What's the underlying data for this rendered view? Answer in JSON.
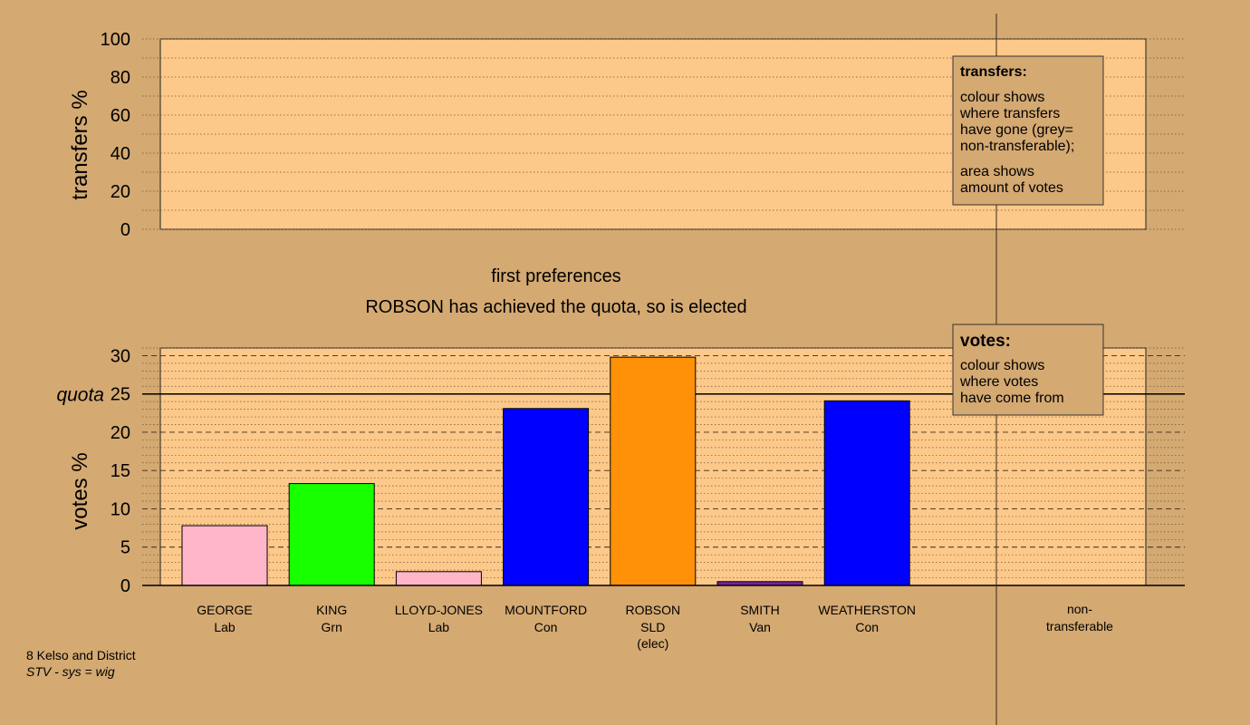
{
  "colors": {
    "background": "#d4a972",
    "panel": "#fdc98a",
    "George": "#ffb6c8",
    "King": "#18ff00",
    "Lloyd-Jones": "#ffb6c8",
    "Mountford": "#0000ff",
    "Robson": "#ff9108",
    "Smith": "#7a1fa0",
    "Weatherston": "#0000ff"
  },
  "footer": {
    "line1": "8 Kelso and District",
    "line2": "STV - sys = wig"
  },
  "chart_data": [
    {
      "type": "bar",
      "title": "",
      "ylabel": "transfers %",
      "ylim": [
        0,
        100
      ],
      "yticks": [
        "0",
        "20",
        "40",
        "60",
        "80",
        "100"
      ],
      "series": [],
      "legend": {
        "title": "transfers:",
        "lines": [
          "colour shows",
          "where transfers",
          "have gone (grey=",
          "non-transferable);"
        ],
        "lines2": [
          "area shows",
          "amount of votes"
        ]
      }
    },
    {
      "type": "bar",
      "title": "first preferences",
      "subtitle": "ROBSON has achieved the quota, so is elected",
      "ylabel": "votes %",
      "ylim": [
        0,
        31
      ],
      "yticks": [
        "0",
        "5",
        "10",
        "15",
        "20",
        "25",
        "30"
      ],
      "quota": 25,
      "quota_label": "quota",
      "categories": [
        {
          "name": "GEORGE",
          "party": "Lab",
          "note": "",
          "color_key": "George"
        },
        {
          "name": "KING",
          "party": "Grn",
          "note": "",
          "color_key": "King"
        },
        {
          "name": "LLOYD-JONES",
          "party": "Lab",
          "note": "",
          "color_key": "Lloyd-Jones"
        },
        {
          "name": "MOUNTFORD",
          "party": "Con",
          "note": "",
          "color_key": "Mountford"
        },
        {
          "name": "ROBSON",
          "party": "SLD",
          "note": "(elec)",
          "color_key": "Robson"
        },
        {
          "name": "SMITH",
          "party": "Van",
          "note": "",
          "color_key": "Smith"
        },
        {
          "name": "WEATHERSTON",
          "party": "Con",
          "note": "",
          "color_key": "Weatherston"
        }
      ],
      "values": [
        7.8,
        13.3,
        1.8,
        23.1,
        29.8,
        0.5,
        24.1
      ],
      "nontransferable": {
        "line1": "non-",
        "line2": "transferable"
      },
      "legend": {
        "title": "votes:",
        "lines": [
          "colour shows",
          "where votes",
          "have come from"
        ]
      }
    }
  ]
}
